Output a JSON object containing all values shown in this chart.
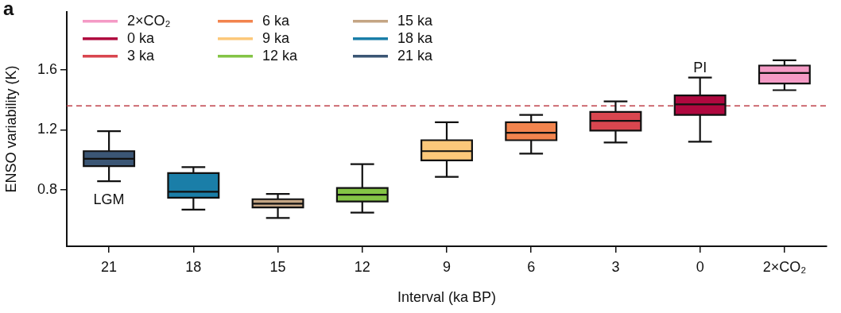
{
  "chart_data": {
    "type": "box",
    "xlabel": "Interval (ka BP)",
    "ylabel": "ENSO variability (K)",
    "categories": [
      "21",
      "18",
      "15",
      "12",
      "9",
      "6",
      "3",
      "0",
      "2×CO₂"
    ],
    "ylim": [
      0.42,
      1.99
    ],
    "yticks": [
      0.8,
      1.2,
      1.6
    ],
    "grid": false,
    "legend": "top left",
    "series": [
      {
        "name": "2×CO₂",
        "color": "#f49ac5",
        "boxes": [
          null,
          null,
          null,
          null,
          null,
          null,
          null,
          null,
          {
            "low": 1.465,
            "q1": 1.51,
            "median": 1.58,
            "q3": 1.63,
            "high": 1.665
          }
        ]
      },
      {
        "name": "0 ka",
        "color": "#b0083f",
        "boxes": [
          null,
          null,
          null,
          null,
          null,
          null,
          null,
          {
            "low": 1.12,
            "q1": 1.3,
            "median": 1.37,
            "q3": 1.43,
            "high": 1.55
          },
          null
        ]
      },
      {
        "name": "3 ka",
        "color": "#d9464f",
        "boxes": [
          null,
          null,
          null,
          null,
          null,
          null,
          {
            "low": 1.115,
            "q1": 1.195,
            "median": 1.26,
            "q3": 1.32,
            "high": 1.39
          },
          null,
          null
        ]
      },
      {
        "name": "6 ka",
        "color": "#f2844e",
        "boxes": [
          null,
          null,
          null,
          null,
          null,
          {
            "low": 1.04,
            "q1": 1.13,
            "median": 1.18,
            "q3": 1.25,
            "high": 1.3
          },
          null,
          null,
          null
        ]
      },
      {
        "name": "9 ka",
        "color": "#fcc87a",
        "boxes": [
          null,
          null,
          null,
          null,
          {
            "low": 0.885,
            "q1": 0.995,
            "median": 1.057,
            "q3": 1.13,
            "high": 1.25
          },
          null,
          null,
          null,
          null
        ]
      },
      {
        "name": "12 ka",
        "color": "#84c446",
        "boxes": [
          null,
          null,
          null,
          {
            "low": 0.645,
            "q1": 0.72,
            "median": 0.765,
            "q3": 0.81,
            "high": 0.97
          },
          null,
          null,
          null,
          null,
          null
        ]
      },
      {
        "name": "15 ka",
        "color": "#c4a584",
        "boxes": [
          null,
          null,
          {
            "low": 0.61,
            "q1": 0.68,
            "median": 0.705,
            "q3": 0.735,
            "high": 0.77
          },
          null,
          null,
          null,
          null,
          null,
          null
        ]
      },
      {
        "name": "18 ka",
        "color": "#1a7ea8",
        "boxes": [
          null,
          {
            "low": 0.665,
            "q1": 0.745,
            "median": 0.785,
            "q3": 0.91,
            "high": 0.95
          },
          null,
          null,
          null,
          null,
          null,
          null,
          null
        ]
      },
      {
        "name": "21 ka",
        "color": "#3b5675",
        "boxes": [
          {
            "low": 0.855,
            "q1": 0.956,
            "median": 1.006,
            "q3": 1.057,
            "high": 1.19
          },
          null,
          null,
          null,
          null,
          null,
          null,
          null,
          null
        ]
      }
    ],
    "ref_lines": [
      {
        "axis": "y",
        "value": 1.36,
        "color": "#c0404a",
        "line_style": "dashed"
      }
    ],
    "annotations": [
      "a",
      "LGM",
      "PI"
    ]
  }
}
